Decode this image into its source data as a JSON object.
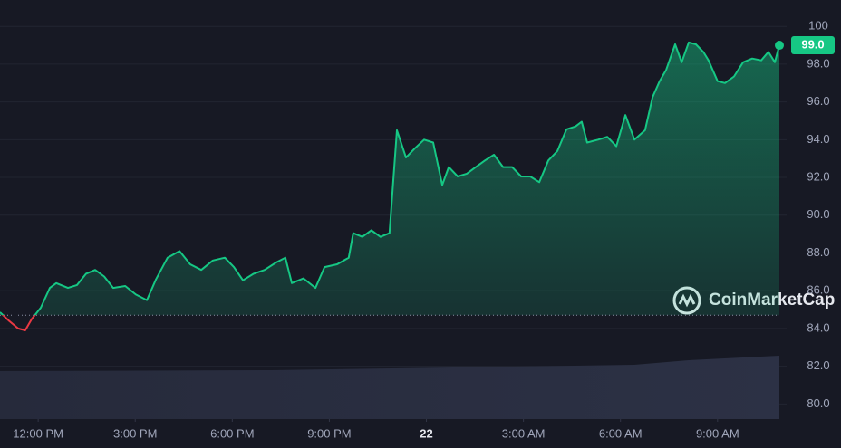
{
  "chart_data": {
    "type": "line",
    "x": [
      10.82,
      11.1,
      11.38,
      11.6,
      11.8,
      12.08,
      12.36,
      12.56,
      12.92,
      13.2,
      13.48,
      13.76,
      14.04,
      14.32,
      14.69,
      15.02,
      15.36,
      15.64,
      16.0,
      16.37,
      16.7,
      17.04,
      17.4,
      17.77,
      18.05,
      18.33,
      18.66,
      19.0,
      19.36,
      19.64,
      19.84,
      20.2,
      20.57,
      20.85,
      21.24,
      21.6,
      21.74,
      22.02,
      22.3,
      22.58,
      22.86,
      23.09,
      23.37,
      23.65,
      23.93,
      24.21,
      24.49,
      24.69,
      24.97,
      25.25,
      25.53,
      25.81,
      26.09,
      26.37,
      26.65,
      26.93,
      27.21,
      27.49,
      27.77,
      28.05,
      28.33,
      28.61,
      28.8,
      28.97,
      29.31,
      29.59,
      29.87,
      30.15,
      30.43,
      30.76,
      30.99,
      31.21,
      31.41,
      31.69,
      31.89,
      32.11,
      32.33,
      32.56,
      32.72,
      33.0,
      33.23,
      33.51,
      33.79,
      34.07,
      34.35,
      34.57,
      34.77,
      34.91
    ],
    "values": [
      84.86,
      84.4,
      84.0,
      83.9,
      84.5,
      85.1,
      86.15,
      86.4,
      86.15,
      86.3,
      86.9,
      87.1,
      86.75,
      86.15,
      86.25,
      85.8,
      85.5,
      86.6,
      87.75,
      88.1,
      87.4,
      87.1,
      87.6,
      87.75,
      87.25,
      86.55,
      86.9,
      87.1,
      87.5,
      87.75,
      86.4,
      86.65,
      86.15,
      87.25,
      87.4,
      87.75,
      89.05,
      88.85,
      89.2,
      88.85,
      89.05,
      94.5,
      93.05,
      93.55,
      94.0,
      93.85,
      91.6,
      92.55,
      92.05,
      92.2,
      92.55,
      92.9,
      93.2,
      92.55,
      92.55,
      92.05,
      92.05,
      91.75,
      92.9,
      93.4,
      94.55,
      94.7,
      94.95,
      93.85,
      94.0,
      94.15,
      93.65,
      95.3,
      94.0,
      94.5,
      96.25,
      97.1,
      97.7,
      99.05,
      98.1,
      99.15,
      99.05,
      98.65,
      98.2,
      97.1,
      97.0,
      97.35,
      98.1,
      98.3,
      98.2,
      98.65,
      98.1,
      99.0
    ],
    "color": "#16c784",
    "color_below": "#ea3943",
    "baseline": 84.7,
    "price_tag": {
      "value": 99.0,
      "label": "99.0"
    },
    "watermark": "CoinMarketCap",
    "xlim": [
      10.82,
      34.91
    ],
    "xticks": [
      {
        "value": 12,
        "label": "12:00 PM"
      },
      {
        "value": 15,
        "label": "3:00 PM"
      },
      {
        "value": 18,
        "label": "6:00 PM"
      },
      {
        "value": 21,
        "label": "9:00 PM"
      },
      {
        "value": 24,
        "label": "22"
      },
      {
        "value": 27,
        "label": "3:00 AM"
      },
      {
        "value": 30,
        "label": "6:00 AM"
      },
      {
        "value": 33,
        "label": "9:00 AM"
      }
    ],
    "ylim": [
      79.2,
      101.4
    ],
    "yticks": [
      {
        "value": 80,
        "label": "80.0"
      },
      {
        "value": 82,
        "label": "82.0"
      },
      {
        "value": 84,
        "label": "84.0"
      },
      {
        "value": 86,
        "label": "86.0"
      },
      {
        "value": 88,
        "label": "88.0"
      },
      {
        "value": 90,
        "label": "90.0"
      },
      {
        "value": 92,
        "label": "92.0"
      },
      {
        "value": 94,
        "label": "94.0"
      },
      {
        "value": 96,
        "label": "96.0"
      },
      {
        "value": 98,
        "label": "98.0"
      },
      100
    ],
    "grid": true
  }
}
